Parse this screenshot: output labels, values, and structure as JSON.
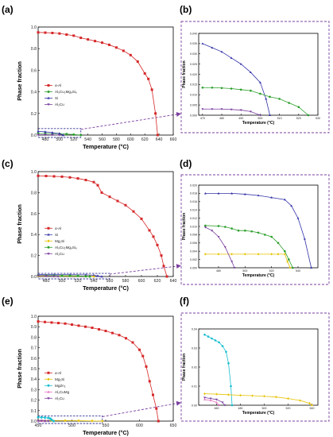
{
  "figure": {
    "panel_letters": [
      "(a)",
      "(b)",
      "(c)",
      "(d)",
      "(e)",
      "(f)"
    ],
    "box_color": "#7b3fa0"
  },
  "chart_data": [
    {
      "id": "a",
      "type": "line",
      "xlabel": "Temperature (°C)",
      "ylabel": "Phase fraction",
      "xlim": [
        470,
        660
      ],
      "ylim": [
        0,
        1.0
      ],
      "xticks": [
        480,
        500,
        520,
        540,
        560,
        580,
        600,
        620,
        640,
        660
      ],
      "yticks": [
        0.0,
        0.2,
        0.4,
        0.6,
        0.8,
        1.0
      ],
      "legend": "left-middle",
      "series": [
        {
          "name": "α-Al",
          "color": "#d62728",
          "marker": "square",
          "x": [
            470,
            480,
            490,
            500,
            510,
            520,
            530,
            540,
            550,
            560,
            570,
            580,
            590,
            600,
            610,
            620,
            625,
            630,
            635,
            638
          ],
          "y": [
            0.95,
            0.948,
            0.945,
            0.94,
            0.93,
            0.92,
            0.9,
            0.885,
            0.87,
            0.855,
            0.835,
            0.81,
            0.78,
            0.74,
            0.68,
            0.57,
            0.52,
            0.42,
            0.2,
            0.0
          ]
        },
        {
          "name": "Al₅Cu₂Mg₈Si₆",
          "color": "#2ca02c",
          "marker": "circle",
          "x": [
            470,
            480,
            490,
            500,
            510,
            520,
            530
          ],
          "y": [
            0.014,
            0.014,
            0.013,
            0.012,
            0.009,
            0.005,
            0.0
          ]
        },
        {
          "name": "Si",
          "color": "#3333aa",
          "marker": "triangle",
          "x": [
            470,
            480,
            490,
            500,
            505
          ],
          "y": [
            0.035,
            0.03,
            0.023,
            0.013,
            0.0
          ]
        },
        {
          "name": "Al₂Cu",
          "color": "#7b3fa0",
          "marker": "triangle-down",
          "x": [
            470,
            480,
            490,
            500
          ],
          "y": [
            0.003,
            0.003,
            0.002,
            0.0
          ]
        }
      ]
    },
    {
      "id": "b",
      "type": "line",
      "xlabel": "Temperature (°C)",
      "ylabel": "Phase fraction",
      "xlim": [
        468,
        530
      ],
      "ylim": [
        0,
        0.04
      ],
      "xticks": [
        470,
        480,
        490,
        500,
        510,
        520,
        530
      ],
      "yticks": [
        0.0,
        0.005,
        0.01,
        0.015,
        0.02,
        0.025,
        0.03,
        0.035,
        0.04
      ],
      "series": [
        {
          "name": "Si",
          "color": "#3333aa",
          "marker": "triangle",
          "x": [
            470,
            475,
            480,
            485,
            490,
            495,
            500,
            503,
            505
          ],
          "y": [
            0.035,
            0.033,
            0.031,
            0.028,
            0.025,
            0.021,
            0.016,
            0.008,
            0.0
          ]
        },
        {
          "name": "Al₅Cu₂Mg₈Si₆",
          "color": "#2ca02c",
          "marker": "circle",
          "x": [
            470,
            475,
            480,
            485,
            490,
            495,
            500,
            505,
            510,
            515,
            520,
            525
          ],
          "y": [
            0.0135,
            0.0135,
            0.0133,
            0.013,
            0.0125,
            0.012,
            0.0105,
            0.009,
            0.008,
            0.006,
            0.004,
            0.0
          ]
        },
        {
          "name": "Al₂Cu",
          "color": "#7b3fa0",
          "marker": "triangle-down",
          "x": [
            470,
            475,
            480,
            485,
            490,
            495,
            500
          ],
          "y": [
            0.003,
            0.003,
            0.003,
            0.0028,
            0.0025,
            0.0018,
            0.0
          ]
        }
      ]
    },
    {
      "id": "c",
      "type": "line",
      "xlabel": "Temperature (°C)",
      "ylabel": "Phase fraction",
      "xlim": [
        470,
        640
      ],
      "ylim": [
        0,
        1.0
      ],
      "xticks": [
        480,
        500,
        520,
        540,
        560,
        580,
        600,
        620,
        640
      ],
      "yticks": [
        0.0,
        0.2,
        0.4,
        0.6,
        0.8,
        1.0
      ],
      "legend": "left-middle",
      "series": [
        {
          "name": "α-Al",
          "color": "#d62728",
          "marker": "square",
          "x": [
            470,
            480,
            490,
            500,
            510,
            520,
            530,
            540,
            545,
            550,
            560,
            570,
            580,
            590,
            600,
            610,
            615,
            620,
            625,
            628,
            632
          ],
          "y": [
            0.96,
            0.958,
            0.955,
            0.952,
            0.945,
            0.935,
            0.92,
            0.9,
            0.87,
            0.8,
            0.76,
            0.72,
            0.68,
            0.62,
            0.55,
            0.44,
            0.38,
            0.3,
            0.2,
            0.1,
            0.0
          ]
        },
        {
          "name": "Si",
          "color": "#3333aa",
          "marker": "triangle",
          "x": [
            470,
            490,
            510,
            530,
            540,
            545,
            550
          ],
          "y": [
            0.018,
            0.018,
            0.017,
            0.016,
            0.012,
            0.006,
            0.0
          ]
        },
        {
          "name": "Mg₂Si",
          "color": "#e6c200",
          "marker": "diamond",
          "x": [
            470,
            490,
            510,
            530,
            535,
            540
          ],
          "y": [
            0.003,
            0.003,
            0.003,
            0.003,
            0.002,
            0.0
          ]
        },
        {
          "name": "Al₅Cu₂Mg₈Si₆",
          "color": "#2ca02c",
          "marker": "circle",
          "x": [
            470,
            480,
            490,
            500,
            510,
            520,
            530,
            535
          ],
          "y": [
            0.01,
            0.01,
            0.009,
            0.008,
            0.007,
            0.006,
            0.002,
            0.0
          ]
        },
        {
          "name": "Al₂Cu",
          "color": "#7b3fa0",
          "marker": "triangle-down",
          "x": [
            470,
            480,
            490,
            495
          ],
          "y": [
            0.008,
            0.006,
            0.002,
            0.0
          ]
        }
      ]
    },
    {
      "id": "d",
      "type": "line",
      "xlabel": "Temperature (°C)",
      "ylabel": "Phase fraction",
      "xlim": [
        465,
        555
      ],
      "ylim": [
        0,
        0.02
      ],
      "xticks": [
        480,
        500,
        520,
        540
      ],
      "yticks": [
        0.0,
        0.002,
        0.004,
        0.006,
        0.008,
        0.01,
        0.012,
        0.014,
        0.016,
        0.018,
        0.02
      ],
      "series": [
        {
          "name": "Si",
          "color": "#3333aa",
          "marker": "triangle",
          "x": [
            470,
            480,
            490,
            500,
            510,
            520,
            530,
            535,
            540,
            545,
            550
          ],
          "y": [
            0.018,
            0.018,
            0.018,
            0.0178,
            0.0175,
            0.017,
            0.0165,
            0.015,
            0.012,
            0.007,
            0.0
          ]
        },
        {
          "name": "Al₅Cu₂Mg₈Si₆",
          "color": "#2ca02c",
          "marker": "circle",
          "x": [
            470,
            480,
            485,
            490,
            495,
            500,
            505,
            510,
            515,
            520,
            525,
            530,
            533,
            536
          ],
          "y": [
            0.0102,
            0.0101,
            0.0099,
            0.0095,
            0.009,
            0.009,
            0.0088,
            0.0085,
            0.008,
            0.0075,
            0.006,
            0.004,
            0.002,
            0.0
          ]
        },
        {
          "name": "Mg₂Si",
          "color": "#e6c200",
          "marker": "diamond",
          "x": [
            470,
            480,
            490,
            500,
            510,
            520,
            525,
            530,
            532,
            534
          ],
          "y": [
            0.0033,
            0.0033,
            0.0033,
            0.0033,
            0.0033,
            0.0033,
            0.0033,
            0.0033,
            0.0015,
            0.0
          ]
        },
        {
          "name": "Al₂Cu",
          "color": "#7b3fa0",
          "marker": "triangle-down",
          "x": [
            470,
            475,
            480,
            485,
            490,
            492
          ],
          "y": [
            0.0098,
            0.009,
            0.0075,
            0.005,
            0.0015,
            0.0
          ]
        }
      ]
    },
    {
      "id": "e",
      "type": "line",
      "xlabel": "Temperature (°C)",
      "ylabel": "Phase fraction",
      "xlim": [
        450,
        650
      ],
      "ylim": [
        0,
        1.0
      ],
      "xticks": [
        450,
        500,
        550,
        600,
        650
      ],
      "yticks": [
        0.0,
        0.1,
        0.2,
        0.3,
        0.4,
        0.5,
        0.6,
        0.7,
        0.8,
        0.9,
        1.0
      ],
      "legend": "left-middle",
      "series": [
        {
          "name": "α-Al",
          "color": "#d62728",
          "marker": "square",
          "x": [
            450,
            460,
            470,
            480,
            490,
            500,
            510,
            520,
            530,
            540,
            550,
            560,
            570,
            580,
            590,
            600,
            605,
            610,
            615,
            620,
            625,
            628
          ],
          "y": [
            0.95,
            0.945,
            0.94,
            0.935,
            0.93,
            0.92,
            0.91,
            0.9,
            0.89,
            0.875,
            0.86,
            0.84,
            0.82,
            0.79,
            0.75,
            0.68,
            0.62,
            0.52,
            0.38,
            0.25,
            0.12,
            0.0
          ]
        },
        {
          "name": "Mg₂Si",
          "color": "#e6c200",
          "marker": "diamond",
          "x": [
            450,
            470,
            490,
            510,
            530,
            545
          ],
          "y": [
            0.006,
            0.006,
            0.005,
            0.004,
            0.002,
            0.0
          ]
        },
        {
          "name": "MgZn₂",
          "color": "#17becf",
          "marker": "circle",
          "x": [
            450,
            455,
            460,
            465,
            468,
            470,
            473
          ],
          "y": [
            0.037,
            0.035,
            0.033,
            0.03,
            0.025,
            0.012,
            0.0
          ]
        },
        {
          "name": "Al₂CuMg",
          "color": "#e377c2",
          "marker": "triangle",
          "x": [
            450,
            455,
            460
          ],
          "y": [
            0.003,
            0.002,
            0.0
          ]
        },
        {
          "name": "Al₂Cu",
          "color": "#7b3fa0",
          "marker": "triangle-down",
          "x": [
            450,
            455,
            460,
            465
          ],
          "y": [
            0.004,
            0.003,
            0.002,
            0.0
          ]
        }
      ]
    },
    {
      "id": "f",
      "type": "line",
      "xlabel": "Temperature (°C)",
      "ylabel": "Phase fraction",
      "xlim": [
        445,
        545
      ],
      "ylim": [
        0,
        0.04
      ],
      "xticks": [
        460,
        480,
        500,
        520,
        540
      ],
      "yticks": [
        0.0,
        0.01,
        0.02,
        0.03,
        0.04
      ],
      "series": [
        {
          "name": "MgZn₂",
          "color": "#17becf",
          "marker": "circle",
          "x": [
            450,
            453,
            456,
            459,
            462,
            465,
            468,
            470,
            472,
            473
          ],
          "y": [
            0.037,
            0.036,
            0.035,
            0.034,
            0.033,
            0.031,
            0.028,
            0.022,
            0.01,
            0.0
          ]
        },
        {
          "name": "Mg₂Si",
          "color": "#e6c200",
          "marker": "diamond",
          "x": [
            450,
            460,
            470,
            480,
            490,
            500,
            510,
            520,
            530,
            538,
            540
          ],
          "y": [
            0.006,
            0.0058,
            0.0055,
            0.0052,
            0.005,
            0.0047,
            0.0043,
            0.0035,
            0.0025,
            0.001,
            0.0
          ]
        },
        {
          "name": "Al₂CuMg",
          "color": "#e377c2",
          "marker": "triangle",
          "x": [
            450,
            455,
            460,
            462
          ],
          "y": [
            0.003,
            0.0025,
            0.0015,
            0.0
          ]
        },
        {
          "name": "Al₂Cu",
          "color": "#7b3fa0",
          "marker": "triangle-down",
          "x": [
            450,
            455,
            460,
            465,
            467
          ],
          "y": [
            0.004,
            0.0035,
            0.003,
            0.0015,
            0.0
          ]
        }
      ]
    }
  ]
}
